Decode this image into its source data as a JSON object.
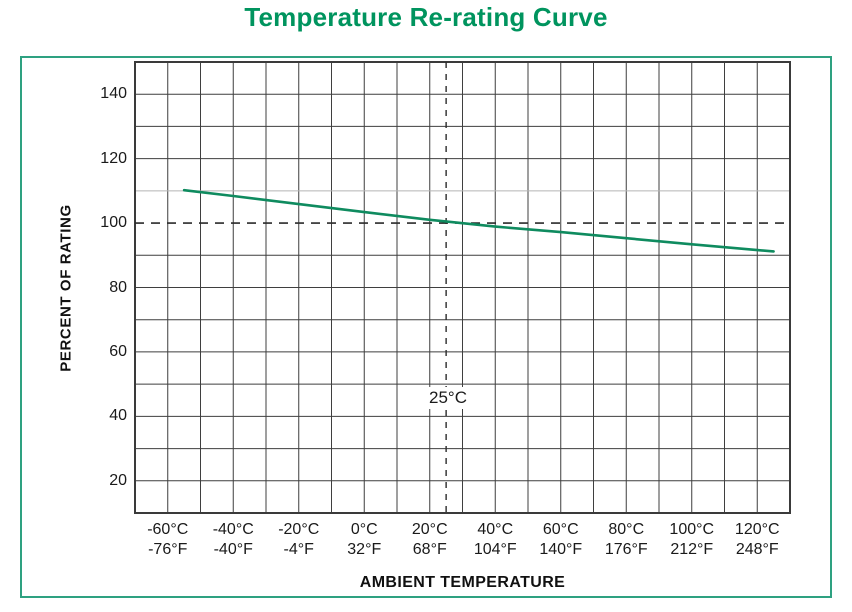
{
  "page": {
    "title": "Temperature Re-rating Curve"
  },
  "chart_data": {
    "type": "line",
    "title": "Temperature Re-rating Curve",
    "xlabel": "AMBIENT TEMPERATURE",
    "ylabel": "PERCENT OF RATING",
    "xlim": [
      -70,
      130
    ],
    "ylim": [
      10,
      150
    ],
    "grid": true,
    "grid_step": 10,
    "legend_position": "none",
    "y_ticks": [
      140,
      120,
      100,
      80,
      60,
      40,
      20
    ],
    "x_ticks": [
      {
        "value": -60,
        "celsius": "-60°C",
        "fahrenheit": "-76°F"
      },
      {
        "value": -40,
        "celsius": "-40°C",
        "fahrenheit": "-40°F"
      },
      {
        "value": -20,
        "celsius": "-20°C",
        "fahrenheit": "-4°F"
      },
      {
        "value": 0,
        "celsius": "0°C",
        "fahrenheit": "32°F"
      },
      {
        "value": 20,
        "celsius": "20°C",
        "fahrenheit": "68°F"
      },
      {
        "value": 40,
        "celsius": "40°C",
        "fahrenheit": "104°F"
      },
      {
        "value": 60,
        "celsius": "60°C",
        "fahrenheit": "140°F"
      },
      {
        "value": 80,
        "celsius": "80°C",
        "fahrenheit": "176°F"
      },
      {
        "value": 100,
        "celsius": "100°C",
        "fahrenheit": "212°F"
      },
      {
        "value": 120,
        "celsius": "120°C",
        "fahrenheit": "248°F"
      }
    ],
    "light_gridlines": [
      110
    ],
    "reference_lines": {
      "horizontal_value": 100,
      "vertical_value": 25,
      "vertical_label": "25°C"
    },
    "series": [
      {
        "name": "percent-of-rating-vs-ambient-temperature",
        "color": "#0f8b5f",
        "points": [
          [
            -55,
            110.2
          ],
          [
            -40,
            108.4
          ],
          [
            -20,
            105.9
          ],
          [
            0,
            103.4
          ],
          [
            20,
            101.0
          ],
          [
            40,
            98.9
          ],
          [
            60,
            97.2
          ],
          [
            80,
            95.3
          ],
          [
            100,
            93.4
          ],
          [
            120,
            91.6
          ],
          [
            125,
            91.2
          ]
        ]
      }
    ]
  },
  "colors": {
    "title": "#00945e",
    "frame_border": "#2ea181",
    "curve": "#0f8b5f",
    "grid": "#3f3f3f",
    "grid_light": "#b5b5b5",
    "plot_border": "#3a3a3a",
    "dashed_reference": "#2b2b2b",
    "text": "#1a1a1a"
  }
}
